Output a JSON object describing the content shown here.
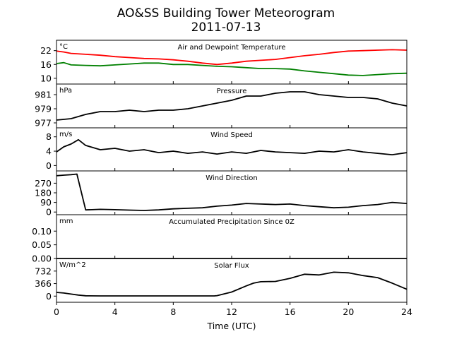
{
  "chart_data": {
    "type": "line",
    "title": "AO&SS Building Tower Meteorogram",
    "subtitle": "2011-07-13",
    "xlabel": "Time (UTC)",
    "xlim": [
      0,
      24
    ],
    "xticks": [
      "0",
      "4",
      "8",
      "12",
      "16",
      "20",
      "24"
    ],
    "panels": [
      {
        "id": "temp",
        "title": "Air and Dewpoint Temperature",
        "unit": "°C",
        "ylim": [
          7.5,
          26.5
        ],
        "yticks": [
          "10",
          "16",
          "22"
        ],
        "series": [
          {
            "color": "#ff0000",
            "points": [
              [
                0,
                21.8
              ],
              [
                0.5,
                21.4
              ],
              [
                1,
                20.8
              ],
              [
                2,
                20.4
              ],
              [
                3,
                20.0
              ],
              [
                4,
                19.4
              ],
              [
                5,
                19.0
              ],
              [
                6,
                18.6
              ],
              [
                7,
                18.4
              ],
              [
                8,
                18.0
              ],
              [
                9,
                17.4
              ],
              [
                10,
                16.6
              ],
              [
                11,
                16.0
              ],
              [
                12,
                16.6
              ],
              [
                13,
                17.4
              ],
              [
                14,
                17.8
              ],
              [
                15,
                18.2
              ],
              [
                16,
                19.0
              ],
              [
                17,
                19.8
              ],
              [
                18,
                20.4
              ],
              [
                19,
                21.2
              ],
              [
                20,
                21.8
              ],
              [
                21,
                22.0
              ],
              [
                22,
                22.2
              ],
              [
                23,
                22.4
              ],
              [
                24,
                22.2
              ]
            ]
          },
          {
            "color": "#008000",
            "points": [
              [
                0,
                16.4
              ],
              [
                0.5,
                16.8
              ],
              [
                1,
                15.8
              ],
              [
                2,
                15.6
              ],
              [
                3,
                15.4
              ],
              [
                4,
                15.8
              ],
              [
                5,
                16.2
              ],
              [
                6,
                16.6
              ],
              [
                7,
                16.6
              ],
              [
                8,
                16.0
              ],
              [
                9,
                16.0
              ],
              [
                10,
                15.6
              ],
              [
                11,
                15.2
              ],
              [
                12,
                15.0
              ],
              [
                13,
                14.6
              ],
              [
                14,
                14.2
              ],
              [
                15,
                14.2
              ],
              [
                16,
                14.0
              ],
              [
                17,
                13.2
              ],
              [
                18,
                12.6
              ],
              [
                19,
                12.0
              ],
              [
                20,
                11.4
              ],
              [
                21,
                11.2
              ],
              [
                22,
                11.6
              ],
              [
                23,
                12.0
              ],
              [
                24,
                12.2
              ]
            ]
          }
        ]
      },
      {
        "id": "pressure",
        "title": "Pressure",
        "unit": "hPa",
        "ylim": [
          976.3,
          982.5
        ],
        "yticks": [
          "977",
          "979",
          "981"
        ],
        "series": [
          {
            "color": "#000000",
            "points": [
              [
                0,
                977.4
              ],
              [
                1,
                977.6
              ],
              [
                2,
                978.2
              ],
              [
                3,
                978.6
              ],
              [
                4,
                978.6
              ],
              [
                5,
                978.8
              ],
              [
                6,
                978.6
              ],
              [
                7,
                978.8
              ],
              [
                8,
                978.8
              ],
              [
                9,
                979.0
              ],
              [
                10,
                979.4
              ],
              [
                11,
                979.8
              ],
              [
                12,
                980.2
              ],
              [
                13,
                980.8
              ],
              [
                14,
                980.8
              ],
              [
                15,
                981.2
              ],
              [
                16,
                981.4
              ],
              [
                17,
                981.4
              ],
              [
                18,
                981.0
              ],
              [
                19,
                980.8
              ],
              [
                20,
                980.6
              ],
              [
                21,
                980.6
              ],
              [
                22,
                980.4
              ],
              [
                23,
                979.8
              ],
              [
                24,
                979.4
              ]
            ]
          }
        ]
      },
      {
        "id": "wspd",
        "title": "Wind Speed",
        "unit": "m/s",
        "ylim": [
          -1.5,
          10.5
        ],
        "yticks": [
          "0",
          "4",
          "8"
        ],
        "series": [
          {
            "color": "#000000",
            "points": [
              [
                0,
                3.8
              ],
              [
                0.5,
                5.2
              ],
              [
                1,
                6.0
              ],
              [
                1.5,
                7.2
              ],
              [
                2,
                5.6
              ],
              [
                3,
                4.4
              ],
              [
                4,
                4.8
              ],
              [
                5,
                4.0
              ],
              [
                6,
                4.4
              ],
              [
                7,
                3.6
              ],
              [
                8,
                4.0
              ],
              [
                9,
                3.4
              ],
              [
                10,
                3.8
              ],
              [
                11,
                3.2
              ],
              [
                12,
                3.8
              ],
              [
                13,
                3.4
              ],
              [
                14,
                4.2
              ],
              [
                15,
                3.8
              ],
              [
                16,
                3.6
              ],
              [
                17,
                3.4
              ],
              [
                18,
                4.0
              ],
              [
                19,
                3.8
              ],
              [
                20,
                4.4
              ],
              [
                21,
                3.8
              ],
              [
                22,
                3.4
              ],
              [
                23,
                3.0
              ],
              [
                24,
                3.6
              ]
            ]
          }
        ]
      },
      {
        "id": "wdir",
        "title": "Wind Direction",
        "unit": "",
        "ylim": [
          -25,
          385
        ],
        "yticks": [
          "0",
          "90",
          "180",
          "270"
        ],
        "series": [
          {
            "color": "#000000",
            "points": [
              [
                0,
                340
              ],
              [
                0.5,
                345
              ],
              [
                1,
                350
              ],
              [
                1.4,
                355
              ],
              [
                2,
                20
              ],
              [
                3,
                25
              ],
              [
                4,
                22
              ],
              [
                5,
                18
              ],
              [
                6,
                15
              ],
              [
                7,
                20
              ],
              [
                8,
                30
              ],
              [
                9,
                35
              ],
              [
                10,
                40
              ],
              [
                11,
                55
              ],
              [
                12,
                65
              ],
              [
                13,
                80
              ],
              [
                14,
                75
              ],
              [
                15,
                70
              ],
              [
                16,
                75
              ],
              [
                17,
                60
              ],
              [
                18,
                50
              ],
              [
                19,
                40
              ],
              [
                20,
                45
              ],
              [
                21,
                60
              ],
              [
                22,
                70
              ],
              [
                23,
                90
              ],
              [
                24,
                80
              ]
            ]
          }
        ]
      },
      {
        "id": "precip",
        "title": "Accumulated Precipitation Since 0Z",
        "unit": "mm",
        "ylim": [
          0,
          0.16
        ],
        "yticks": [
          "0.00",
          "0.05",
          "0.10"
        ],
        "series": [
          {
            "color": "#000000",
            "points": [
              [
                0,
                0
              ],
              [
                24,
                0
              ]
            ]
          }
        ]
      },
      {
        "id": "solar",
        "title": "Solar Flux",
        "unit": "W/m^2",
        "ylim": [
          -180,
          1100
        ],
        "yticks": [
          "0",
          "366",
          "732"
        ],
        "series": [
          {
            "color": "#000000",
            "points": [
              [
                0,
                110
              ],
              [
                0.5,
                90
              ],
              [
                1,
                60
              ],
              [
                1.5,
                30
              ],
              [
                2,
                10
              ],
              [
                3,
                5
              ],
              [
                4,
                5
              ],
              [
                5,
                5
              ],
              [
                6,
                5
              ],
              [
                7,
                5
              ],
              [
                8,
                5
              ],
              [
                9,
                5
              ],
              [
                10,
                5
              ],
              [
                10.8,
                5
              ],
              [
                11,
                15
              ],
              [
                12,
                120
              ],
              [
                13,
                300
              ],
              [
                13.5,
                380
              ],
              [
                14,
                420
              ],
              [
                15,
                430
              ],
              [
                16,
                520
              ],
              [
                17,
                640
              ],
              [
                18,
                620
              ],
              [
                19,
                700
              ],
              [
                20,
                680
              ],
              [
                21,
                600
              ],
              [
                22,
                540
              ],
              [
                23,
                380
              ],
              [
                24,
                200
              ]
            ]
          }
        ]
      }
    ]
  }
}
